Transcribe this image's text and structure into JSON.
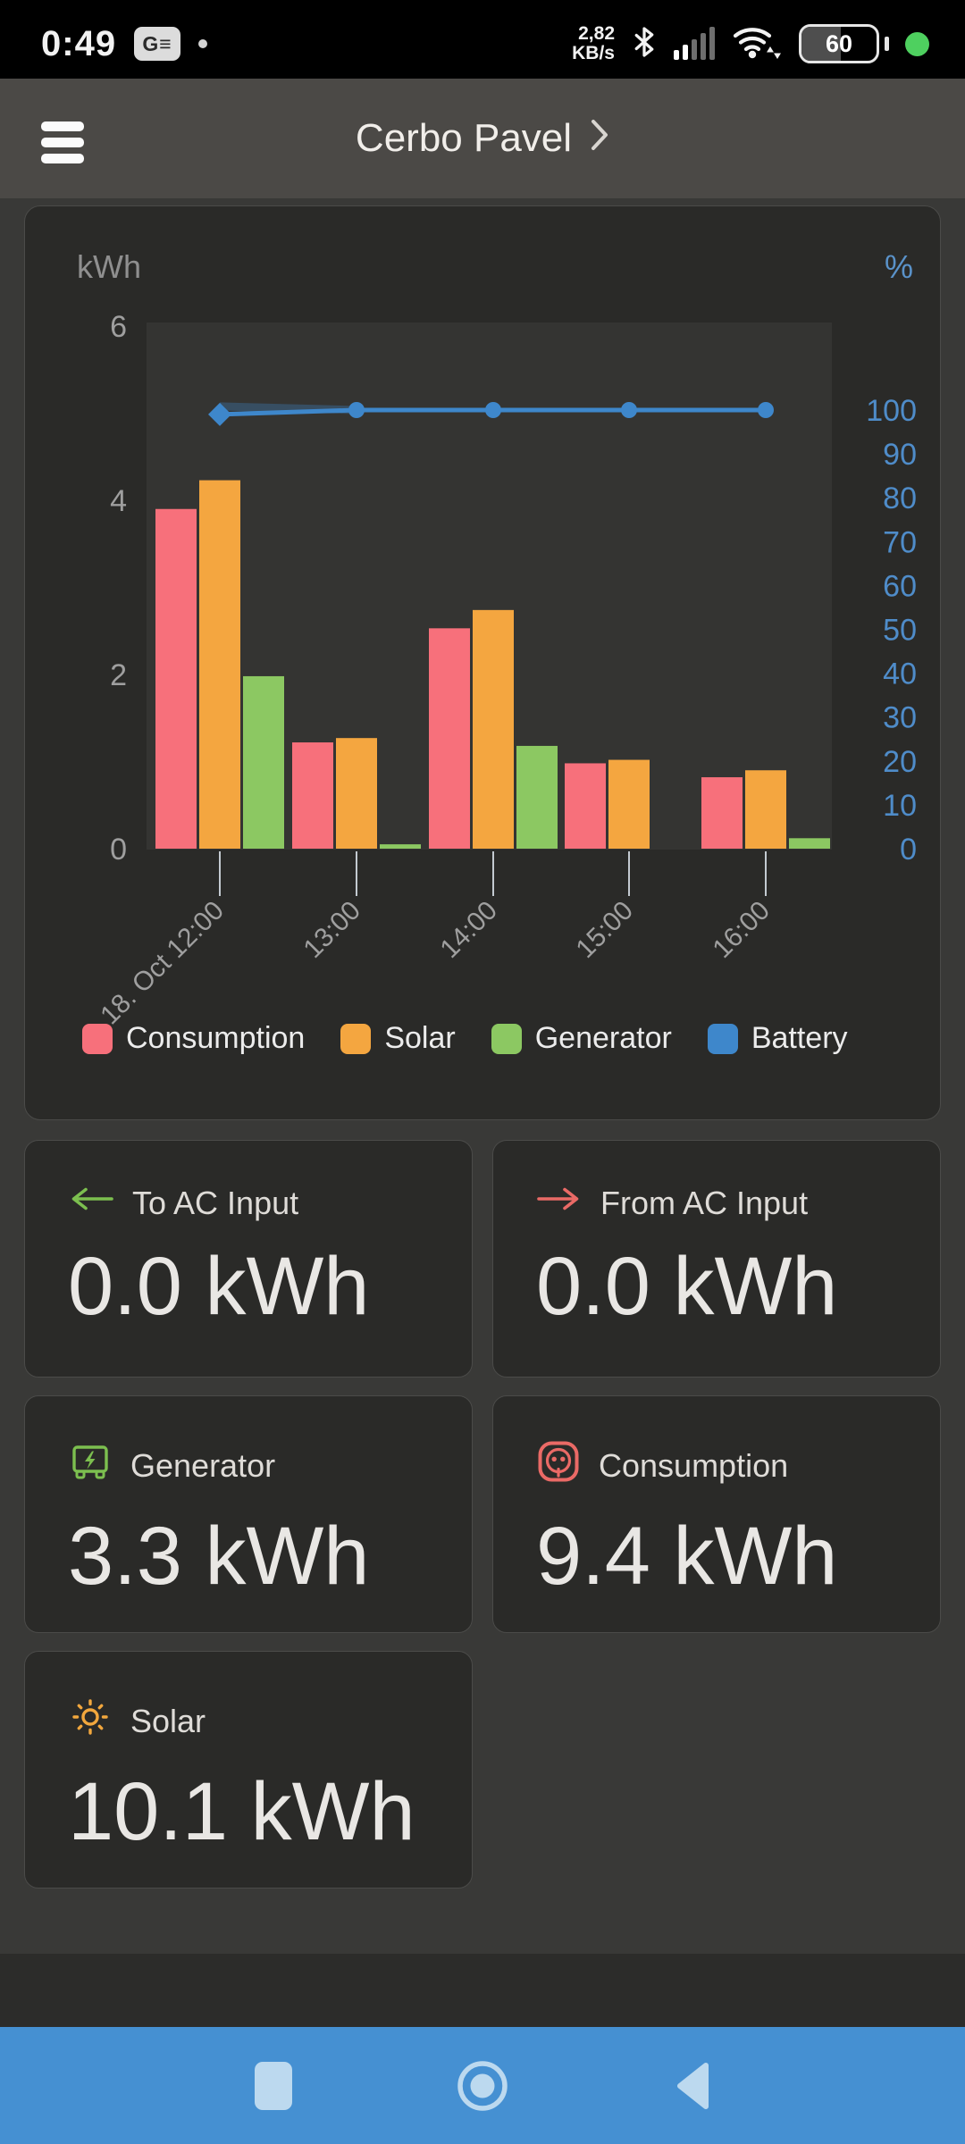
{
  "status_bar": {
    "time": "0:49",
    "notification_badge": "G≡",
    "net_speed_value": "2,82",
    "net_speed_unit": "KB/s",
    "battery_level": "60",
    "icons": [
      "notification-badge",
      "bluetooth-icon",
      "signal-icon",
      "wifi-icon",
      "battery-icon",
      "green-status-dot"
    ],
    "colors": {
      "status_dot_green": "#4ed05f"
    }
  },
  "header": {
    "title": "Cerbo Pavel",
    "chevron": "›"
  },
  "chart_data": {
    "type": "bar",
    "subtype": "grouped bars + line on secondary axis",
    "categories": [
      "18. Oct 12:00",
      "13:00",
      "14:00",
      "15:00",
      "16:00"
    ],
    "left_axis": {
      "label": "kWh",
      "ticks": [
        0,
        2,
        4,
        6
      ],
      "range": [
        0,
        6.1
      ]
    },
    "right_axis": {
      "label": "%",
      "ticks": [
        0,
        10,
        20,
        30,
        40,
        50,
        60,
        70,
        80,
        90,
        100
      ],
      "range": [
        0,
        146
      ]
    },
    "series": [
      {
        "name": "Consumption",
        "type": "bar",
        "axis": "left",
        "unit": "kWh",
        "color": "#f7707b",
        "values": [
          3.9,
          1.22,
          2.53,
          0.98,
          0.82
        ]
      },
      {
        "name": "Solar",
        "type": "bar",
        "axis": "left",
        "unit": "kWh",
        "color": "#f4a640",
        "values": [
          4.23,
          1.27,
          2.74,
          1.02,
          0.9
        ]
      },
      {
        "name": "Generator",
        "type": "bar",
        "axis": "left",
        "unit": "kWh",
        "color": "#8cc862",
        "values": [
          1.98,
          0.05,
          1.18,
          0,
          0.12
        ]
      },
      {
        "name": "Battery",
        "type": "line",
        "axis": "right",
        "unit": "%",
        "color": "#3e87cb",
        "values": [
          99,
          100,
          100,
          100,
          100
        ]
      }
    ],
    "legend_position": "bottom",
    "grid": false
  },
  "cards": [
    {
      "label": "To AC Input",
      "value": "0.0 kWh",
      "icon": "arrow-left-icon",
      "icon_color": "#7cbf4f"
    },
    {
      "label": "From AC Input",
      "value": "0.0 kWh",
      "icon": "arrow-right-icon",
      "icon_color": "#ea6a66"
    },
    {
      "label": "Generator",
      "value": "3.3 kWh",
      "icon": "generator-icon",
      "icon_color": "#7cbf4f"
    },
    {
      "label": "Consumption",
      "value": "9.4 kWh",
      "icon": "socket-icon",
      "icon_color": "#ea6a66"
    },
    {
      "label": "Solar",
      "value": "10.1 kWh",
      "icon": "sun-icon",
      "icon_color": "#f2a73d"
    }
  ],
  "nav_bar": {
    "color": "#4590d2",
    "icons": [
      "recents-square-icon",
      "home-circle-icon",
      "back-triangle-icon"
    ]
  }
}
